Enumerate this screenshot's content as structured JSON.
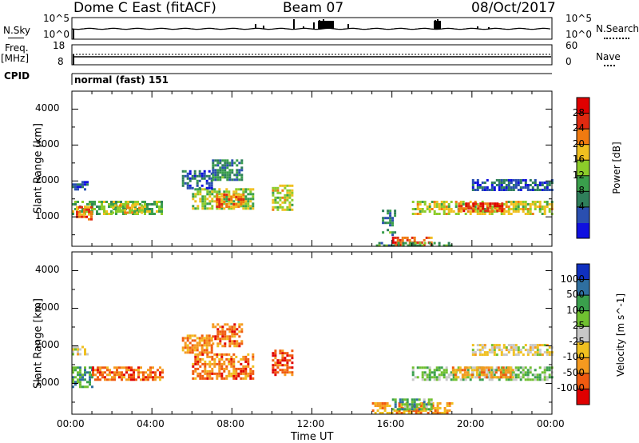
{
  "header": {
    "station": "Dome C East (fitACF)",
    "beam": "Beam 07",
    "date": "08/Oct/2017"
  },
  "left_labels": {
    "nsky": "N.Sky",
    "freq": "Freq.",
    "mhz": "[MHz]",
    "cpid": "CPID"
  },
  "right_labels": {
    "nsearch": "N.Search",
    "nave": "Nave"
  },
  "cpid_text": "normal (fast) 151",
  "noise_ticks": {
    "top": "10^5",
    "bottom": "10^0"
  },
  "freq_ticks": {
    "left_top": "18",
    "left_bottom": "8",
    "right_top": "60",
    "right_bottom": "0"
  },
  "colors": {
    "power": [
      "#1010e0",
      "#2a4fb0",
      "#2f7f5a",
      "#3a9f4c",
      "#8ccc2a",
      "#f0c020",
      "#f07a10",
      "#e02a10",
      "#e00000"
    ],
    "velocity": [
      "#e00000",
      "#f05a10",
      "#f59a20",
      "#f0c020",
      "#c8c8c8",
      "#70c030",
      "#3a9f4c",
      "#2f6fa0",
      "#1030c0"
    ]
  },
  "chart_data": [
    {
      "type": "heatmap",
      "panel": "power",
      "ylabel": "Slant Range [km]",
      "ylim": [
        180,
        4500
      ],
      "yticks": [
        "4000",
        "3000",
        "2000",
        "1000"
      ],
      "xlim": [
        0,
        24
      ],
      "xticks": [
        "00:00",
        "04:00",
        "08:00",
        "12:00",
        "16:00",
        "20:00",
        "00:00"
      ],
      "colorbar": {
        "label": "Power [dB]",
        "ticks": [
          "28",
          "24",
          "20",
          "16",
          "12",
          "8",
          "4"
        ],
        "range": [
          0,
          30
        ]
      },
      "regions": [
        {
          "t": [
            0.0,
            4.5
          ],
          "r": [
            1050,
            1450
          ],
          "level": 0.45
        },
        {
          "t": [
            0.2,
            1.0
          ],
          "r": [
            900,
            1300
          ],
          "level": 0.75
        },
        {
          "t": [
            2.0,
            3.5
          ],
          "r": [
            1100,
            1350
          ],
          "level": 0.6
        },
        {
          "t": [
            6.0,
            9.0
          ],
          "r": [
            1200,
            1800
          ],
          "level": 0.5
        },
        {
          "t": [
            7.2,
            8.6
          ],
          "r": [
            1300,
            1650
          ],
          "level": 0.72
        },
        {
          "t": [
            10.0,
            11.0
          ],
          "r": [
            1200,
            1900
          ],
          "level": 0.55
        },
        {
          "t": [
            0.0,
            0.8
          ],
          "r": [
            1750,
            2000
          ],
          "level": 0.15
        },
        {
          "t": [
            5.5,
            7.0
          ],
          "r": [
            1800,
            2300
          ],
          "level": 0.2
        },
        {
          "t": [
            7.0,
            8.5
          ],
          "r": [
            2000,
            2600
          ],
          "level": 0.3
        },
        {
          "t": [
            16.0,
            18.0
          ],
          "r": [
            200,
            450
          ],
          "level": 0.8
        },
        {
          "t": [
            15.2,
            19.0
          ],
          "r": [
            200,
            300
          ],
          "level": 0.35
        },
        {
          "t": [
            17.0,
            24.0
          ],
          "r": [
            1100,
            1450
          ],
          "level": 0.55
        },
        {
          "t": [
            19.3,
            21.5
          ],
          "r": [
            1150,
            1400
          ],
          "level": 0.82
        },
        {
          "t": [
            20.0,
            24.0
          ],
          "r": [
            1750,
            2050
          ],
          "level": 0.18
        },
        {
          "t": [
            15.5,
            16.2
          ],
          "r": [
            500,
            1200
          ],
          "level": 0.3
        }
      ]
    },
    {
      "type": "heatmap",
      "panel": "velocity",
      "ylabel": "Slant Range [km]",
      "xlabel": "Time UT",
      "ylim": [
        180,
        4500
      ],
      "yticks": [
        "4000",
        "3000",
        "2000",
        "1000"
      ],
      "xlim": [
        0,
        24
      ],
      "xticks": [
        "00:00",
        "04:00",
        "08:00",
        "12:00",
        "16:00",
        "20:00",
        "00:00"
      ],
      "colorbar": {
        "label": "Velocity [m s^-1]",
        "ticks": [
          "1000",
          "500",
          "100",
          "25",
          "-25",
          "-100",
          "-500",
          "-1000"
        ]
      },
      "regions": [
        {
          "t": [
            0.0,
            1.0
          ],
          "r": [
            900,
            1450
          ],
          "level": 0.7
        },
        {
          "t": [
            1.0,
            4.5
          ],
          "r": [
            1100,
            1450
          ],
          "level": 0.2
        },
        {
          "t": [
            5.5,
            7.0
          ],
          "r": [
            1800,
            2300
          ],
          "level": 0.25
        },
        {
          "t": [
            7.0,
            8.5
          ],
          "r": [
            2000,
            2600
          ],
          "level": 0.2
        },
        {
          "t": [
            6.0,
            9.0
          ],
          "r": [
            1100,
            1800
          ],
          "level": 0.22
        },
        {
          "t": [
            10.0,
            11.0
          ],
          "r": [
            1200,
            1900
          ],
          "level": 0.15
        },
        {
          "t": [
            0.0,
            0.8
          ],
          "r": [
            1750,
            2000
          ],
          "level": 0.45
        },
        {
          "t": [
            17.0,
            24.0
          ],
          "r": [
            1100,
            1450
          ],
          "level": 0.62
        },
        {
          "t": [
            19.0,
            22.0
          ],
          "r": [
            1150,
            1450
          ],
          "level": 0.3
        },
        {
          "t": [
            20.0,
            24.0
          ],
          "r": [
            1750,
            2050
          ],
          "level": 0.45
        },
        {
          "t": [
            15.0,
            19.0
          ],
          "r": [
            200,
            500
          ],
          "level": 0.3
        },
        {
          "t": [
            16.0,
            18.0
          ],
          "r": [
            300,
            600
          ],
          "level": 0.68
        }
      ]
    }
  ]
}
